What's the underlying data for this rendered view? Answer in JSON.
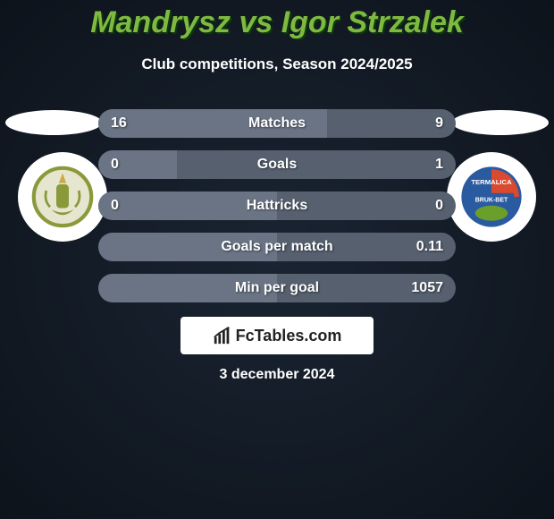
{
  "background": {
    "gradient_from": "#1a2432",
    "gradient_to": "#0d131b"
  },
  "title": {
    "color": "#7fb940",
    "text": "Mandrysz vs Igor Strzalek",
    "shadow": "#0a3a0a"
  },
  "subtitle": {
    "color": "#ffffff",
    "text": "Club competitions, Season 2024/2025"
  },
  "ellipse_color": "#ffffff",
  "club_badge": {
    "bg": "#ffffff",
    "left_accent": "#8a9a3a",
    "right_primary": "#2a5aa0",
    "right_accent": "#d94a2e",
    "right_label": "TERMALICA"
  },
  "row_style": {
    "bg": "#56606f",
    "fill": "#6a7485",
    "text": "#ffffff"
  },
  "rows": [
    {
      "left": "16",
      "label": "Matches",
      "right": "9",
      "fill_pct": 64
    },
    {
      "left": "0",
      "label": "Goals",
      "right": "1",
      "fill_pct": 22
    },
    {
      "left": "0",
      "label": "Hattricks",
      "right": "0",
      "fill_pct": 50
    },
    {
      "left": "",
      "label": "Goals per match",
      "right": "0.11",
      "fill_pct": 50
    },
    {
      "left": "",
      "label": "Min per goal",
      "right": "1057",
      "fill_pct": 50
    }
  ],
  "brand": {
    "bg": "#ffffff",
    "text_color": "#222222",
    "text": "FcTables.com"
  },
  "date": {
    "color": "#ffffff",
    "text": "3 december 2024"
  }
}
